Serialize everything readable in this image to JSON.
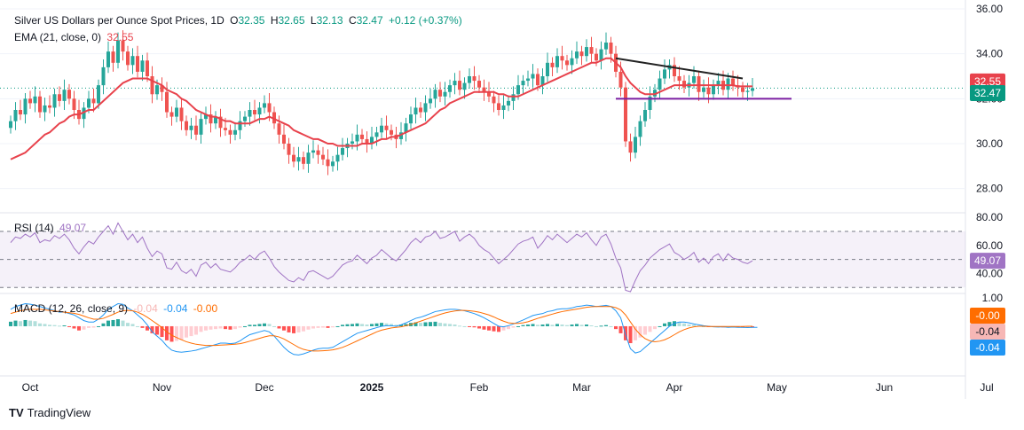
{
  "header": {
    "symbol_title": "Silver US Dollars per Ounce Spot Prices, 1D",
    "o_label": "O",
    "o_value": "32.35",
    "h_label": "H",
    "h_value": "32.65",
    "l_label": "L",
    "l_value": "32.13",
    "c_label": "C",
    "c_value": "32.47",
    "change": "+0.12 (+0.37%)",
    "ema_title": "EMA (21, close, 0)",
    "ema_value": "32.55"
  },
  "rsi_header": {
    "title": "RSI (14)",
    "value": "49.07"
  },
  "macd_header": {
    "title": "MACD (12, 26, close, 9)",
    "hist": "-0.04",
    "macd": "-0.04",
    "signal": "-0.00"
  },
  "branding": {
    "logo_text": "TV",
    "name": "TradingView"
  },
  "colors": {
    "up": "#26a69a",
    "down": "#ef5350",
    "ema": "#e8424c",
    "rsi": "#a074c4",
    "macd": "#2196f3",
    "signal": "#ff6d00",
    "trend_down": "#222222",
    "support": "#7b1fa2"
  },
  "chart_data": [
    {
      "type": "candlestick",
      "title": "Silver US Dollars per Ounce Spot Prices, 1D",
      "x_ticks": [
        "Oct",
        "Nov",
        "Dec",
        "2025",
        "Feb",
        "Mar",
        "Apr",
        "May",
        "Jun",
        "Jul"
      ],
      "y_ticks": [
        "28.00",
        "30.00",
        "32.00",
        "34.00",
        "36.00"
      ],
      "ylim": [
        27,
        36
      ],
      "grid": true,
      "last_close": 32.47,
      "price_labels": {
        "ema": "32.55",
        "close": "32.47"
      },
      "close_series": [
        31.0,
        31.5,
        31.3,
        32.0,
        31.8,
        32.1,
        31.4,
        31.7,
        31.6,
        32.2,
        31.9,
        32.4,
        32.0,
        31.5,
        31.1,
        31.6,
        32.0,
        31.8,
        32.6,
        33.4,
        34.1,
        33.6,
        34.6,
        34.1,
        33.5,
        33.9,
        33.2,
        33.7,
        33.0,
        32.2,
        32.6,
        32.3,
        31.4,
        31.2,
        31.6,
        31.0,
        30.6,
        30.8,
        30.4,
        31.1,
        31.3,
        30.9,
        31.2,
        30.7,
        30.6,
        30.4,
        30.6,
        31.0,
        31.2,
        31.5,
        31.3,
        31.6,
        31.8,
        31.4,
        30.9,
        30.4,
        30.0,
        29.5,
        29.2,
        29.4,
        29.1,
        29.6,
        29.7,
        29.5,
        29.3,
        29.0,
        29.2,
        29.5,
        29.8,
        30.0,
        30.1,
        30.4,
        30.2,
        30.0,
        30.3,
        30.5,
        30.8,
        30.6,
        30.4,
        30.2,
        30.5,
        30.9,
        31.3,
        31.6,
        31.4,
        31.8,
        32.0,
        32.4,
        32.1,
        32.3,
        32.6,
        32.8,
        32.4,
        32.7,
        33.0,
        32.8,
        32.5,
        32.3,
        32.1,
        31.8,
        31.5,
        31.7,
        31.9,
        32.2,
        32.6,
        32.8,
        32.9,
        33.1,
        32.6,
        33.0,
        33.6,
        33.4,
        33.9,
        33.7,
        33.5,
        33.8,
        34.1,
        33.9,
        34.3,
        34.0,
        33.7,
        34.2,
        34.5,
        34.0,
        33.2,
        32.5,
        30.1,
        29.6,
        30.3,
        31.0,
        31.5,
        32.1,
        32.4,
        32.9,
        33.3,
        33.5,
        33.0,
        32.8,
        32.5,
        32.7,
        33.0,
        32.3,
        32.5,
        32.2,
        32.6,
        32.8,
        32.4,
        32.9,
        32.6,
        32.5,
        32.3,
        32.35,
        32.47
      ],
      "ema_series": [
        29.3,
        29.4,
        29.5,
        29.6,
        29.8,
        30.0,
        30.2,
        30.4,
        30.5,
        30.7,
        30.9,
        31.0,
        31.2,
        31.3,
        31.3,
        31.4,
        31.5,
        31.5,
        31.7,
        31.9,
        32.1,
        32.3,
        32.5,
        32.7,
        32.8,
        32.9,
        32.9,
        32.9,
        32.9,
        32.8,
        32.7,
        32.6,
        32.4,
        32.3,
        32.2,
        32.0,
        31.9,
        31.7,
        31.5,
        31.4,
        31.3,
        31.2,
        31.2,
        31.1,
        31.0,
        31.0,
        30.9,
        30.9,
        30.9,
        30.9,
        31.0,
        31.1,
        31.1,
        31.2,
        31.1,
        31.0,
        30.9,
        30.8,
        30.6,
        30.5,
        30.4,
        30.3,
        30.2,
        30.2,
        30.1,
        30.0,
        30.0,
        29.9,
        29.9,
        29.9,
        29.9,
        29.9,
        30.0,
        30.0,
        30.0,
        30.1,
        30.2,
        30.2,
        30.3,
        30.3,
        30.4,
        30.5,
        30.6,
        30.7,
        30.8,
        30.9,
        31.1,
        31.3,
        31.5,
        31.6,
        31.8,
        31.9,
        32.0,
        32.1,
        32.2,
        32.3,
        32.3,
        32.3,
        32.3,
        32.3,
        32.2,
        32.2,
        32.1,
        32.1,
        32.1,
        32.2,
        32.3,
        32.4,
        32.5,
        32.6,
        32.7,
        32.8,
        32.9,
        33.0,
        33.1,
        33.2,
        33.3,
        33.4,
        33.5,
        33.6,
        33.6,
        33.7,
        33.8,
        33.8,
        33.6,
        33.4,
        33.0,
        32.7,
        32.5,
        32.3,
        32.2,
        32.2,
        32.2,
        32.3,
        32.4,
        32.5,
        32.6,
        32.6,
        32.6,
        32.6,
        32.6,
        32.6,
        32.6,
        32.6,
        32.6,
        32.6,
        32.6,
        32.6,
        32.6,
        32.55,
        32.55,
        32.55,
        32.55
      ],
      "annotations": [
        {
          "kind": "descending-trendline",
          "from": [
            124,
            33.8
          ],
          "to": [
            150,
            32.9
          ]
        },
        {
          "kind": "horizontal-support",
          "from": [
            124,
            32.0
          ],
          "to": [
            160,
            32.0
          ]
        }
      ]
    },
    {
      "type": "line",
      "title": "RSI (14)",
      "y_ticks": [
        "40.00",
        "60.00",
        "80.00"
      ],
      "ylim": [
        27,
        82
      ],
      "bands": [
        70,
        50,
        30
      ],
      "current": "49.07",
      "values": [
        62,
        66,
        65,
        68,
        66,
        69,
        62,
        64,
        63,
        67,
        65,
        68,
        64,
        58,
        54,
        59,
        63,
        61,
        66,
        70,
        74,
        68,
        76,
        70,
        64,
        68,
        62,
        66,
        58,
        52,
        56,
        54,
        44,
        43,
        48,
        42,
        40,
        43,
        38,
        46,
        48,
        44,
        47,
        43,
        42,
        41,
        44,
        48,
        50,
        53,
        50,
        54,
        56,
        51,
        45,
        41,
        38,
        35,
        34,
        37,
        35,
        41,
        42,
        40,
        38,
        36,
        38,
        42,
        46,
        48,
        49,
        53,
        50,
        47,
        51,
        53,
        57,
        54,
        51,
        49,
        53,
        57,
        62,
        65,
        62,
        66,
        67,
        70,
        65,
        66,
        68,
        70,
        63,
        66,
        68,
        65,
        60,
        57,
        55,
        51,
        47,
        50,
        53,
        57,
        61,
        63,
        64,
        66,
        58,
        62,
        67,
        64,
        68,
        65,
        62,
        65,
        68,
        66,
        69,
        64,
        60,
        66,
        68,
        61,
        51,
        44,
        28,
        27,
        35,
        42,
        46,
        51,
        54,
        57,
        59,
        61,
        55,
        53,
        50,
        52,
        55,
        48,
        51,
        47,
        52,
        54,
        49,
        54,
        51,
        50,
        48,
        47,
        49.07
      ]
    },
    {
      "type": "bar",
      "title": "MACD (12, 26, close, 9)",
      "y_ticks": [
        "1.00"
      ],
      "ylim": [
        -1.7,
        1.1
      ],
      "price_labels": {
        "signal": "-0.00",
        "hist": "-0.04",
        "macd": "-0.04"
      },
      "histogram": [
        0.16,
        0.2,
        0.18,
        0.22,
        0.2,
        0.18,
        0.1,
        0.08,
        0.05,
        0.04,
        0.02,
        0.03,
        -0.02,
        -0.08,
        -0.15,
        -0.12,
        -0.06,
        -0.05,
        0.0,
        0.1,
        0.2,
        0.22,
        0.25,
        0.2,
        0.12,
        0.08,
        0.0,
        -0.06,
        -0.15,
        -0.25,
        -0.3,
        -0.38,
        -0.5,
        -0.55,
        -0.52,
        -0.48,
        -0.4,
        -0.35,
        -0.3,
        -0.2,
        -0.15,
        -0.12,
        -0.1,
        -0.08,
        -0.1,
        -0.12,
        -0.1,
        -0.05,
        0.0,
        0.05,
        0.05,
        0.08,
        0.1,
        0.08,
        0.0,
        -0.08,
        -0.15,
        -0.22,
        -0.25,
        -0.22,
        -0.18,
        -0.12,
        -0.08,
        -0.06,
        -0.05,
        -0.06,
        -0.04,
        0.0,
        0.05,
        0.07,
        0.08,
        0.1,
        0.08,
        0.06,
        0.08,
        0.1,
        0.12,
        0.1,
        0.08,
        0.05,
        0.06,
        0.08,
        0.12,
        0.14,
        0.12,
        0.14,
        0.15,
        0.16,
        0.12,
        0.1,
        0.08,
        0.06,
        0.02,
        0.0,
        -0.02,
        -0.04,
        -0.08,
        -0.12,
        -0.15,
        -0.18,
        -0.2,
        -0.15,
        -0.1,
        -0.05,
        0.0,
        0.04,
        0.06,
        0.08,
        0.05,
        0.06,
        0.08,
        0.05,
        0.08,
        0.06,
        0.04,
        0.06,
        0.08,
        0.05,
        0.06,
        0.03,
        0.0,
        0.02,
        0.04,
        0.0,
        -0.1,
        -0.25,
        -0.5,
        -0.6,
        -0.5,
        -0.4,
        -0.3,
        -0.2,
        -0.1,
        0.0,
        0.1,
        0.15,
        0.18,
        0.15,
        0.1,
        0.06,
        0.05,
        0.02,
        0.0,
        -0.02,
        -0.03,
        -0.02,
        -0.04,
        -0.03,
        -0.04,
        -0.04,
        -0.05,
        -0.04,
        -0.04
      ],
      "macd_line": [
        0.6,
        0.7,
        0.75,
        0.8,
        0.78,
        0.75,
        0.7,
        0.65,
        0.6,
        0.55,
        0.5,
        0.5,
        0.45,
        0.4,
        0.3,
        0.2,
        0.15,
        0.15,
        0.25,
        0.4,
        0.6,
        0.7,
        0.8,
        0.78,
        0.65,
        0.55,
        0.4,
        0.25,
        0.05,
        -0.2,
        -0.35,
        -0.5,
        -0.7,
        -0.85,
        -0.9,
        -0.92,
        -0.9,
        -0.88,
        -0.85,
        -0.8,
        -0.75,
        -0.7,
        -0.65,
        -0.6,
        -0.6,
        -0.62,
        -0.6,
        -0.52,
        -0.4,
        -0.3,
        -0.25,
        -0.2,
        -0.15,
        -0.2,
        -0.35,
        -0.55,
        -0.75,
        -0.9,
        -1.0,
        -1.02,
        -0.98,
        -0.92,
        -0.85,
        -0.8,
        -0.78,
        -0.78,
        -0.75,
        -0.65,
        -0.55,
        -0.45,
        -0.35,
        -0.25,
        -0.2,
        -0.15,
        -0.1,
        -0.05,
        0.0,
        0.02,
        0.02,
        0.0,
        0.05,
        0.12,
        0.2,
        0.28,
        0.32,
        0.38,
        0.45,
        0.52,
        0.55,
        0.58,
        0.6,
        0.6,
        0.58,
        0.55,
        0.5,
        0.45,
        0.38,
        0.3,
        0.2,
        0.1,
        0.0,
        -0.02,
        0.02,
        0.08,
        0.15,
        0.22,
        0.3,
        0.38,
        0.42,
        0.45,
        0.52,
        0.55,
        0.6,
        0.62,
        0.62,
        0.65,
        0.7,
        0.72,
        0.75,
        0.73,
        0.7,
        0.72,
        0.74,
        0.7,
        0.55,
        0.3,
        -0.3,
        -0.8,
        -0.95,
        -0.9,
        -0.75,
        -0.6,
        -0.45,
        -0.3,
        -0.15,
        0.0,
        0.1,
        0.15,
        0.15,
        0.12,
        0.08,
        0.05,
        0.02,
        0.0,
        -0.02,
        -0.03,
        -0.02,
        -0.04,
        -0.03,
        -0.04,
        -0.04,
        -0.05,
        -0.04,
        -0.04
      ],
      "signal_line": [
        0.45,
        0.5,
        0.55,
        0.58,
        0.6,
        0.6,
        0.6,
        0.58,
        0.56,
        0.54,
        0.52,
        0.5,
        0.48,
        0.46,
        0.42,
        0.36,
        0.3,
        0.25,
        0.25,
        0.28,
        0.35,
        0.42,
        0.5,
        0.55,
        0.56,
        0.55,
        0.5,
        0.42,
        0.32,
        0.2,
        0.08,
        -0.05,
        -0.2,
        -0.32,
        -0.4,
        -0.48,
        -0.55,
        -0.6,
        -0.64,
        -0.66,
        -0.68,
        -0.68,
        -0.68,
        -0.67,
        -0.66,
        -0.65,
        -0.64,
        -0.62,
        -0.58,
        -0.53,
        -0.48,
        -0.43,
        -0.38,
        -0.34,
        -0.34,
        -0.38,
        -0.45,
        -0.55,
        -0.65,
        -0.75,
        -0.82,
        -0.86,
        -0.88,
        -0.88,
        -0.87,
        -0.86,
        -0.84,
        -0.8,
        -0.75,
        -0.68,
        -0.6,
        -0.52,
        -0.44,
        -0.36,
        -0.28,
        -0.2,
        -0.14,
        -0.1,
        -0.06,
        -0.04,
        -0.02,
        0.02,
        0.06,
        0.12,
        0.18,
        0.24,
        0.3,
        0.36,
        0.42,
        0.47,
        0.51,
        0.54,
        0.56,
        0.56,
        0.55,
        0.53,
        0.5,
        0.45,
        0.4,
        0.33,
        0.25,
        0.18,
        0.12,
        0.1,
        0.1,
        0.12,
        0.16,
        0.22,
        0.28,
        0.33,
        0.38,
        0.43,
        0.48,
        0.52,
        0.55,
        0.58,
        0.61,
        0.64,
        0.67,
        0.69,
        0.7,
        0.7,
        0.7,
        0.7,
        0.66,
        0.58,
        0.4,
        0.15,
        -0.1,
        -0.3,
        -0.44,
        -0.52,
        -0.55,
        -0.53,
        -0.48,
        -0.4,
        -0.3,
        -0.2,
        -0.12,
        -0.06,
        -0.02,
        0.0,
        0.0,
        -0.01,
        -0.01,
        -0.01,
        -0.01,
        -0.01,
        -0.01,
        -0.01,
        -0.01,
        0.0,
        0.0
      ]
    }
  ]
}
